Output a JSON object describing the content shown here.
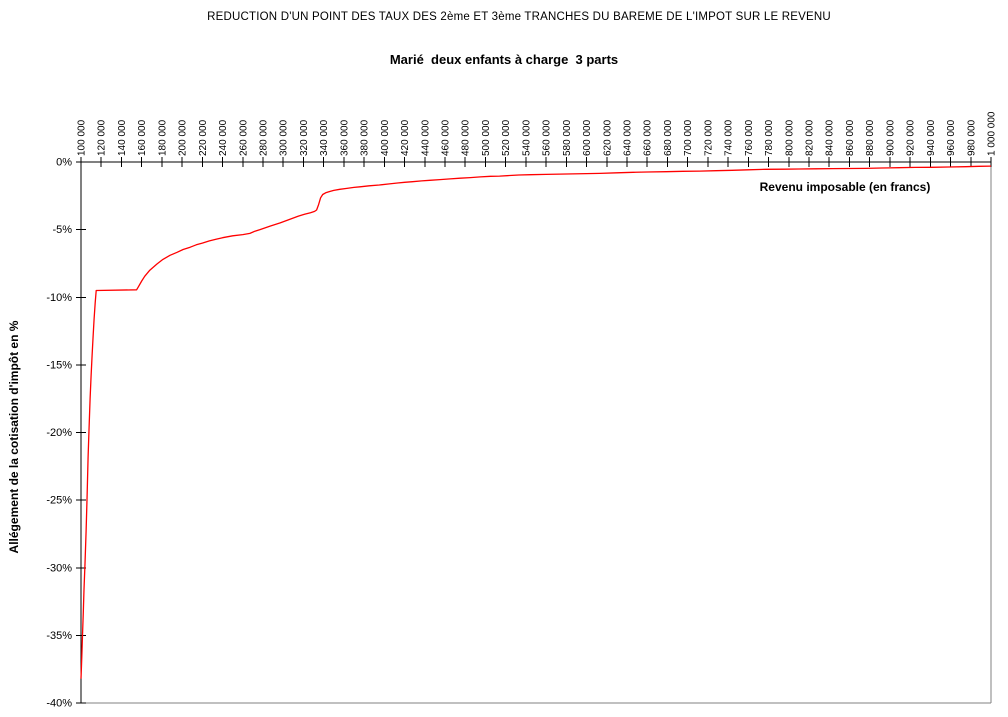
{
  "header": {
    "title": "REDUCTION D'UN POINT DES TAUX DES 2ème ET 3ème TRANCHES DU BAREME DE L'IMPOT SUR LE REVENU",
    "subtitle": "Marié  deux enfants à charge  3 parts"
  },
  "chart_data": {
    "type": "line",
    "title": "REDUCTION D'UN POINT DES TAUX DES 2ème ET 3ème TRANCHES DU BAREME DE L'IMPOT SUR LE REVENU",
    "subtitle": "Marié  deux enfants à charge  3 parts",
    "xlabel": "Revenu imposable (en francs)",
    "ylabel": "Allégement de la cotisation d'impôt en %",
    "xlim": [
      100000,
      1000000
    ],
    "ylim": [
      -40,
      0
    ],
    "x_tick_step": 20000,
    "y_tick_step": -5,
    "grid": false,
    "legend": "none",
    "line_color": "#ff0000",
    "axis_color": "#000000",
    "border_color": "#808080",
    "x_tick_labels": [
      "100 000",
      "120 000",
      "140 000",
      "160 000",
      "180 000",
      "200 000",
      "220 000",
      "240 000",
      "260 000",
      "280 000",
      "300 000",
      "320 000",
      "340 000",
      "360 000",
      "380 000",
      "400 000",
      "420 000",
      "440 000",
      "460 000",
      "480 000",
      "500 000",
      "520 000",
      "540 000",
      "560 000",
      "580 000",
      "600 000",
      "620 000",
      "640 000",
      "660 000",
      "680 000",
      "700 000",
      "720 000",
      "740 000",
      "760 000",
      "780 000",
      "800 000",
      "820 000",
      "840 000",
      "860 000",
      "880 000",
      "900 000",
      "920 000",
      "940 000",
      "960 000",
      "980 000",
      "1 000 000"
    ],
    "y_tick_labels": [
      "0%",
      "-5%",
      "-10%",
      "-15%",
      "-20%",
      "-25%",
      "-30%",
      "-35%",
      "-40%"
    ],
    "series": [
      {
        "points": [
          [
            100000,
            -38.2
          ],
          [
            100800,
            -36.6
          ],
          [
            101500,
            -35.0
          ],
          [
            102300,
            -33.3
          ],
          [
            103000,
            -31.6
          ],
          [
            104000,
            -29.7
          ],
          [
            105000,
            -27.3
          ],
          [
            106000,
            -24.7
          ],
          [
            107000,
            -21.8
          ],
          [
            108000,
            -19.6
          ],
          [
            109000,
            -17.5
          ],
          [
            110000,
            -15.8
          ],
          [
            111000,
            -14.3
          ],
          [
            112000,
            -12.9
          ],
          [
            113000,
            -11.6
          ],
          [
            114000,
            -10.4
          ],
          [
            115000,
            -9.5
          ],
          [
            155000,
            -9.45
          ],
          [
            157000,
            -9.2
          ],
          [
            160000,
            -8.8
          ],
          [
            163000,
            -8.45
          ],
          [
            168000,
            -8.0
          ],
          [
            175000,
            -7.55
          ],
          [
            181000,
            -7.2
          ],
          [
            188000,
            -6.9
          ],
          [
            195000,
            -6.68
          ],
          [
            201000,
            -6.47
          ],
          [
            208000,
            -6.3
          ],
          [
            214000,
            -6.12
          ],
          [
            220000,
            -6.0
          ],
          [
            227000,
            -5.83
          ],
          [
            234000,
            -5.7
          ],
          [
            240000,
            -5.6
          ],
          [
            250000,
            -5.46
          ],
          [
            260000,
            -5.37
          ],
          [
            267000,
            -5.28
          ],
          [
            272000,
            -5.12
          ],
          [
            277000,
            -5.0
          ],
          [
            287000,
            -4.74
          ],
          [
            297000,
            -4.5
          ],
          [
            306000,
            -4.25
          ],
          [
            315000,
            -4.0
          ],
          [
            321000,
            -3.87
          ],
          [
            327000,
            -3.75
          ],
          [
            331000,
            -3.65
          ],
          [
            333000,
            -3.55
          ],
          [
            335000,
            -3.15
          ],
          [
            337000,
            -2.65
          ],
          [
            339000,
            -2.4
          ],
          [
            342000,
            -2.28
          ],
          [
            346000,
            -2.18
          ],
          [
            350000,
            -2.1
          ],
          [
            356000,
            -2.02
          ],
          [
            363000,
            -1.95
          ],
          [
            370000,
            -1.88
          ],
          [
            376000,
            -1.83
          ],
          [
            385000,
            -1.76
          ],
          [
            395000,
            -1.7
          ],
          [
            405000,
            -1.62
          ],
          [
            413000,
            -1.55
          ],
          [
            420000,
            -1.5
          ],
          [
            428000,
            -1.46
          ],
          [
            437000,
            -1.4
          ],
          [
            445000,
            -1.35
          ],
          [
            455000,
            -1.3
          ],
          [
            465000,
            -1.25
          ],
          [
            475000,
            -1.2
          ],
          [
            485000,
            -1.15
          ],
          [
            495000,
            -1.1
          ],
          [
            505000,
            -1.06
          ],
          [
            514000,
            -1.04
          ],
          [
            524000,
            -1.0
          ],
          [
            533000,
            -0.96
          ],
          [
            545000,
            -0.94
          ],
          [
            560000,
            -0.92
          ],
          [
            580000,
            -0.89
          ],
          [
            600000,
            -0.86
          ],
          [
            613000,
            -0.84
          ],
          [
            630000,
            -0.8
          ],
          [
            646000,
            -0.76
          ],
          [
            660000,
            -0.74
          ],
          [
            679000,
            -0.72
          ],
          [
            695000,
            -0.69
          ],
          [
            712000,
            -0.67
          ],
          [
            728000,
            -0.64
          ],
          [
            744000,
            -0.61
          ],
          [
            760000,
            -0.58
          ],
          [
            777000,
            -0.54
          ],
          [
            795000,
            -0.53
          ],
          [
            810000,
            -0.52
          ],
          [
            826000,
            -0.5
          ],
          [
            843000,
            -0.49
          ],
          [
            860000,
            -0.48
          ],
          [
            876000,
            -0.47
          ],
          [
            892000,
            -0.44
          ],
          [
            909000,
            -0.42
          ],
          [
            925000,
            -0.4
          ],
          [
            941000,
            -0.39
          ],
          [
            958000,
            -0.37
          ],
          [
            975000,
            -0.35
          ],
          [
            988000,
            -0.32
          ],
          [
            1000000,
            -0.3
          ]
        ]
      }
    ]
  }
}
